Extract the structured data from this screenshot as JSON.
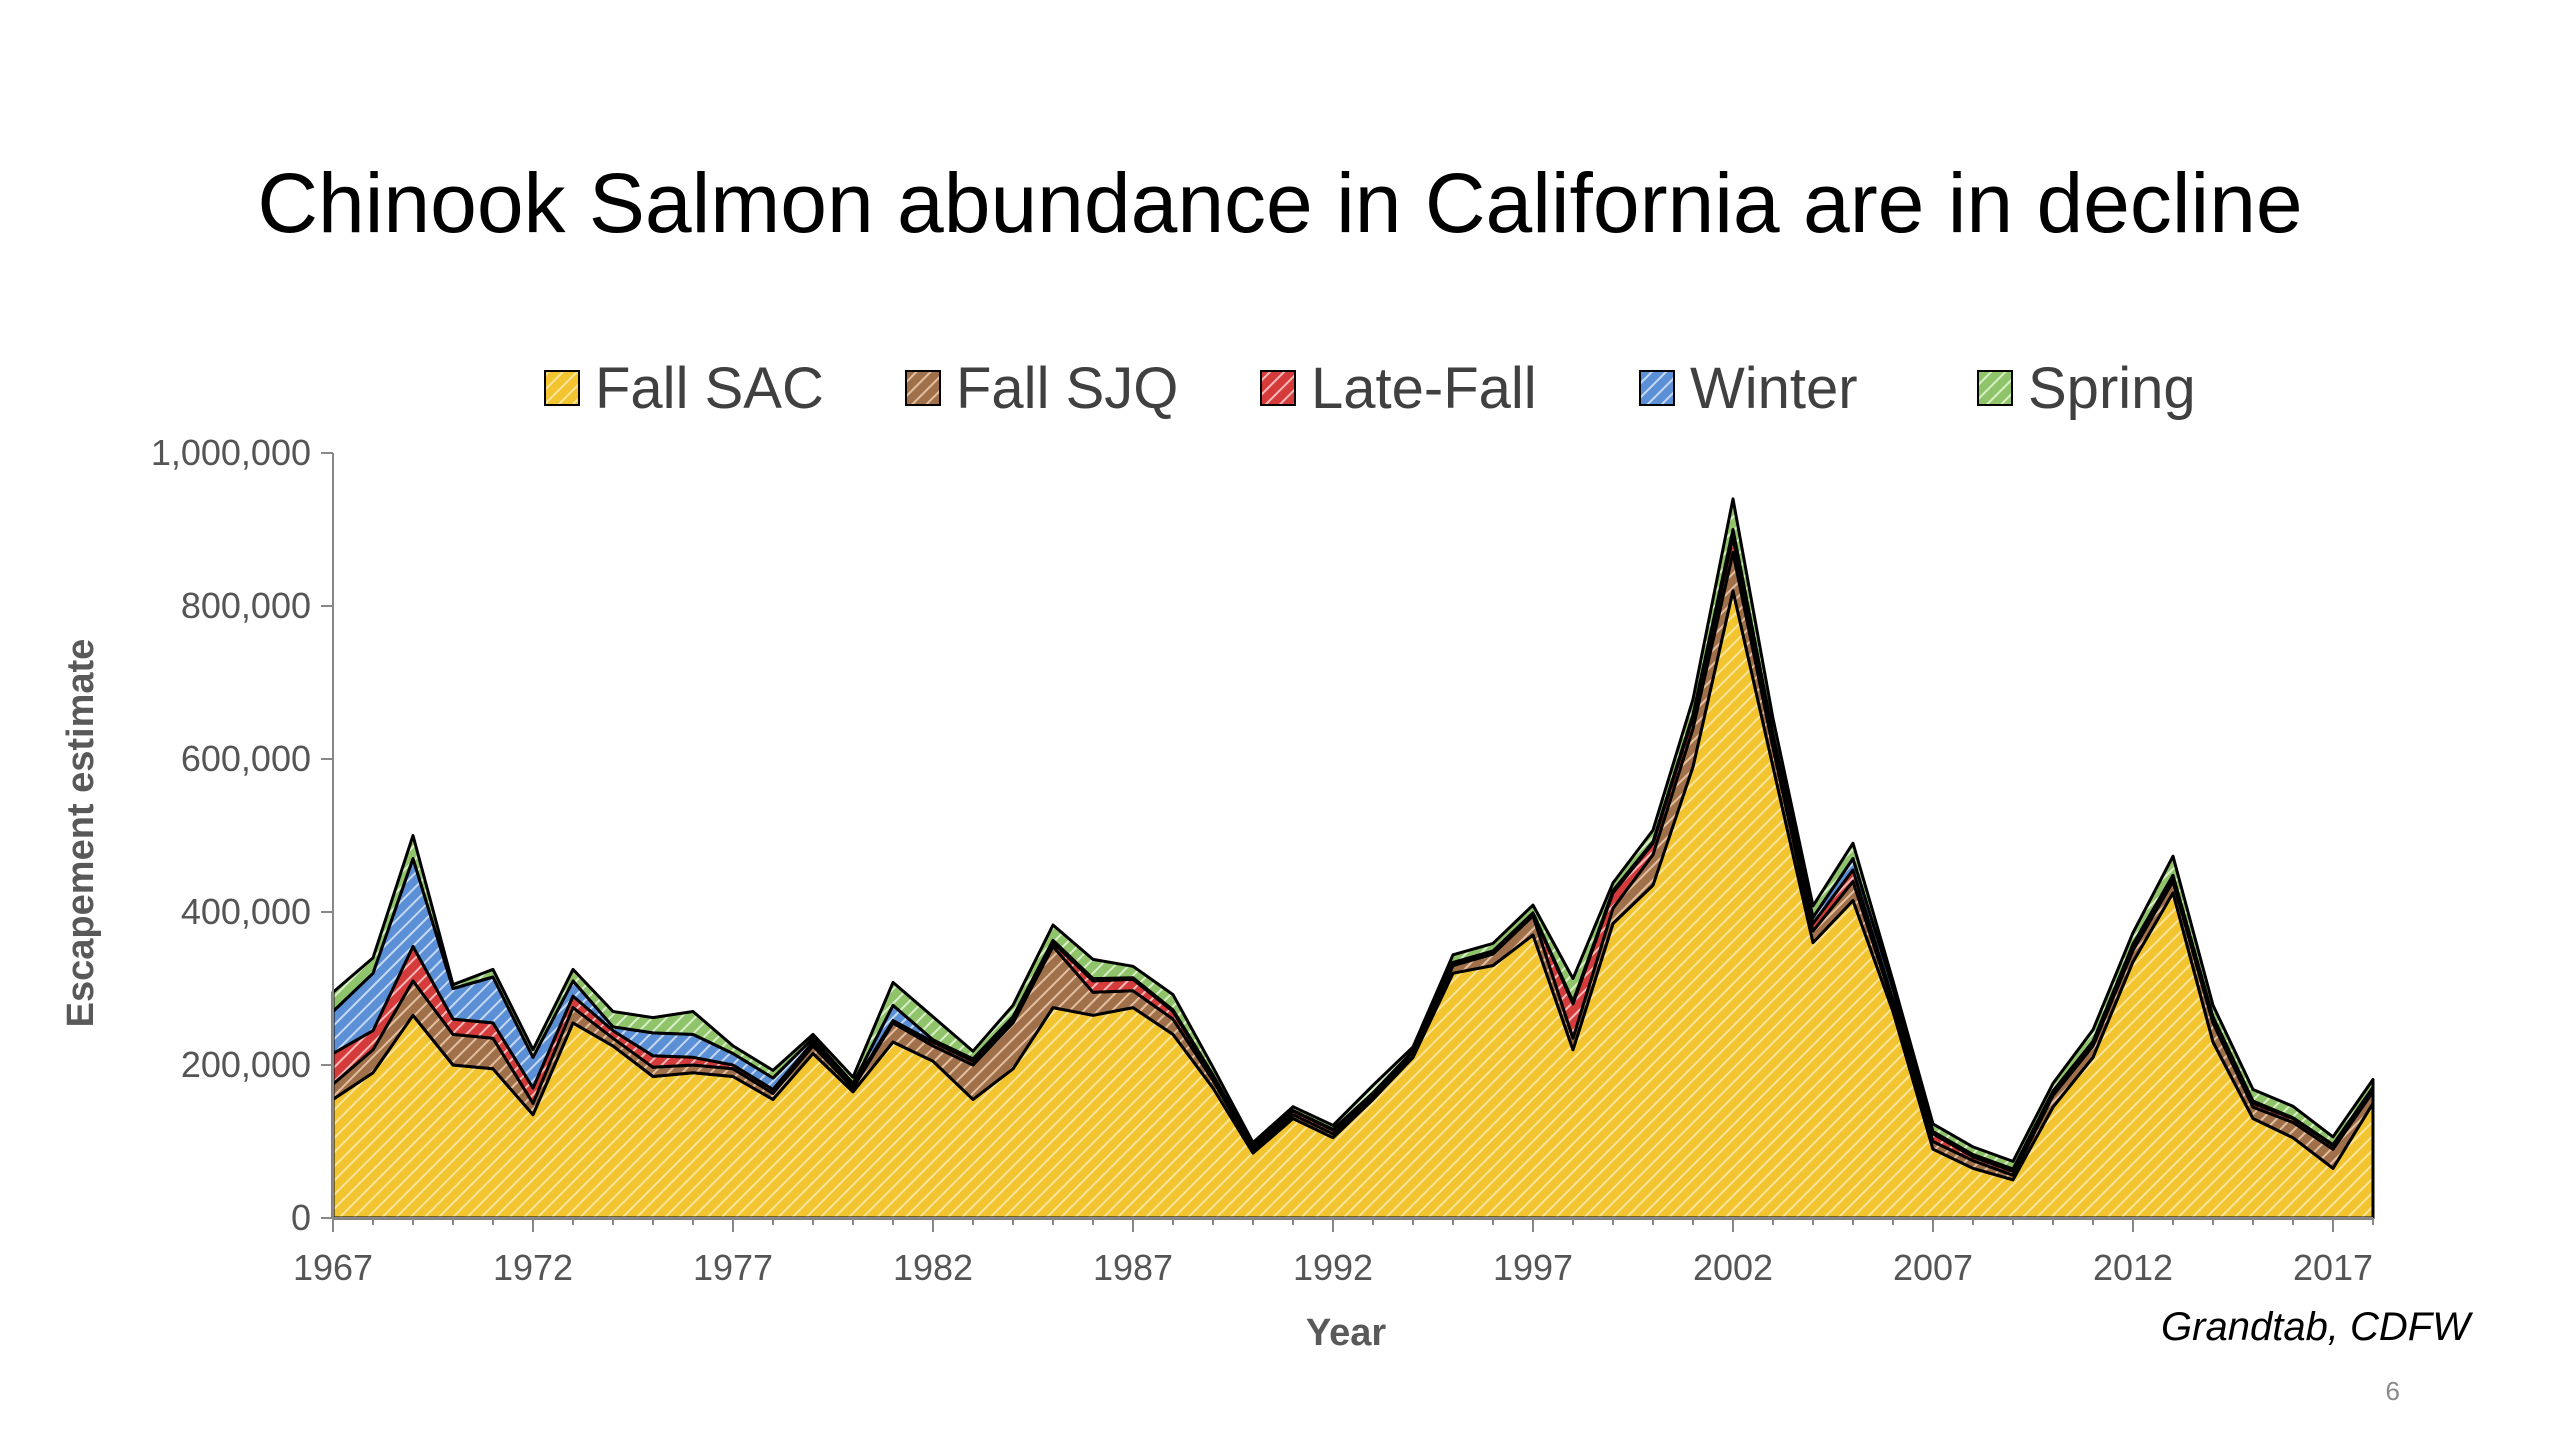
{
  "slide": {
    "title": "Chinook Salmon abundance in California are in decline",
    "source": "Grandtab, CDFW",
    "page_number": "6"
  },
  "chart_data": {
    "type": "area",
    "stacked": true,
    "title": "",
    "xlabel": "Year",
    "ylabel": "Escapement estimate",
    "ylim": [
      0,
      1000000
    ],
    "yticks": [
      0,
      200000,
      400000,
      600000,
      800000,
      1000000
    ],
    "ytick_labels": [
      "0",
      "200,000",
      "400,000",
      "600,000",
      "800,000",
      "1,000,000"
    ],
    "xticks": [
      1967,
      1972,
      1977,
      1982,
      1987,
      1992,
      1997,
      2002,
      2007,
      2012,
      2017
    ],
    "legend_position": "top",
    "x": [
      1967,
      1968,
      1969,
      1970,
      1971,
      1972,
      1973,
      1974,
      1975,
      1976,
      1977,
      1978,
      1979,
      1980,
      1981,
      1982,
      1983,
      1984,
      1985,
      1986,
      1987,
      1988,
      1989,
      1990,
      1991,
      1992,
      1993,
      1994,
      1995,
      1996,
      1997,
      1998,
      1999,
      2000,
      2001,
      2002,
      2003,
      2004,
      2005,
      2006,
      2007,
      2008,
      2009,
      2010,
      2011,
      2012,
      2013,
      2014,
      2015,
      2016,
      2017,
      2018
    ],
    "series": [
      {
        "name": "Fall SAC",
        "color": "#f2c530",
        "values": [
          155000,
          190000,
          265000,
          200000,
          195000,
          135000,
          255000,
          225000,
          185000,
          190000,
          185000,
          155000,
          215000,
          165000,
          230000,
          205000,
          155000,
          195000,
          275000,
          265000,
          275000,
          240000,
          170000,
          85000,
          130000,
          105000,
          155000,
          210000,
          320000,
          330000,
          370000,
          220000,
          385000,
          435000,
          590000,
          820000,
          590000,
          360000,
          415000,
          270000,
          90000,
          65000,
          50000,
          145000,
          210000,
          335000,
          425000,
          230000,
          130000,
          105000,
          65000,
          150000
        ]
      },
      {
        "name": "Fall SJQ",
        "color": "#a0704a",
        "values": [
          20000,
          30000,
          45000,
          40000,
          40000,
          15000,
          20000,
          10000,
          12000,
          10000,
          10000,
          8000,
          10000,
          5000,
          25000,
          20000,
          45000,
          60000,
          80000,
          30000,
          22000,
          20000,
          10000,
          5000,
          5000,
          5000,
          5000,
          5000,
          10000,
          15000,
          25000,
          15000,
          20000,
          40000,
          50000,
          50000,
          25000,
          15000,
          25000,
          10000,
          10000,
          10000,
          6000,
          15000,
          15000,
          15000,
          15000,
          25000,
          15000,
          20000,
          25000,
          15000
        ]
      },
      {
        "name": "Late-Fall",
        "color": "#d63b3b",
        "values": [
          40000,
          25000,
          45000,
          20000,
          20000,
          20000,
          15000,
          10000,
          15000,
          10000,
          5000,
          5000,
          5000,
          3000,
          3000,
          5000,
          5000,
          5000,
          5000,
          15000,
          15000,
          10000,
          5000,
          3000,
          5000,
          5000,
          3000,
          3000,
          3000,
          3000,
          3000,
          45000,
          20000,
          15000,
          15000,
          20000,
          10000,
          10000,
          15000,
          5000,
          10000,
          5000,
          5000,
          5000,
          5000,
          5000,
          5000,
          5000,
          5000,
          5000,
          5000,
          5000
        ]
      },
      {
        "name": "Winter",
        "color": "#5b8fd6",
        "values": [
          55000,
          75000,
          115000,
          40000,
          60000,
          40000,
          20000,
          5000,
          30000,
          30000,
          15000,
          15000,
          5000,
          3000,
          20000,
          3000,
          3000,
          3000,
          3000,
          3000,
          2000,
          2000,
          2000,
          500,
          500,
          1000,
          500,
          500,
          1000,
          1000,
          1000,
          3000,
          3000,
          2000,
          3000,
          10000,
          8000,
          8000,
          15000,
          15000,
          3000,
          3000,
          3000,
          1000,
          1000,
          3000,
          3000,
          3000,
          3000,
          1000,
          1000,
          1000
        ]
      },
      {
        "name": "Spring",
        "color": "#8fc46a",
        "values": [
          25000,
          20000,
          30000,
          5000,
          10000,
          10000,
          15000,
          20000,
          20000,
          30000,
          10000,
          10000,
          5000,
          8000,
          30000,
          30000,
          10000,
          15000,
          20000,
          25000,
          15000,
          20000,
          10000,
          5000,
          5000,
          5000,
          10000,
          5000,
          10000,
          10000,
          10000,
          30000,
          10000,
          15000,
          20000,
          40000,
          20000,
          15000,
          20000,
          10000,
          10000,
          10000,
          10000,
          10000,
          15000,
          15000,
          25000,
          15000,
          15000,
          15000,
          10000,
          10000
        ]
      }
    ]
  }
}
